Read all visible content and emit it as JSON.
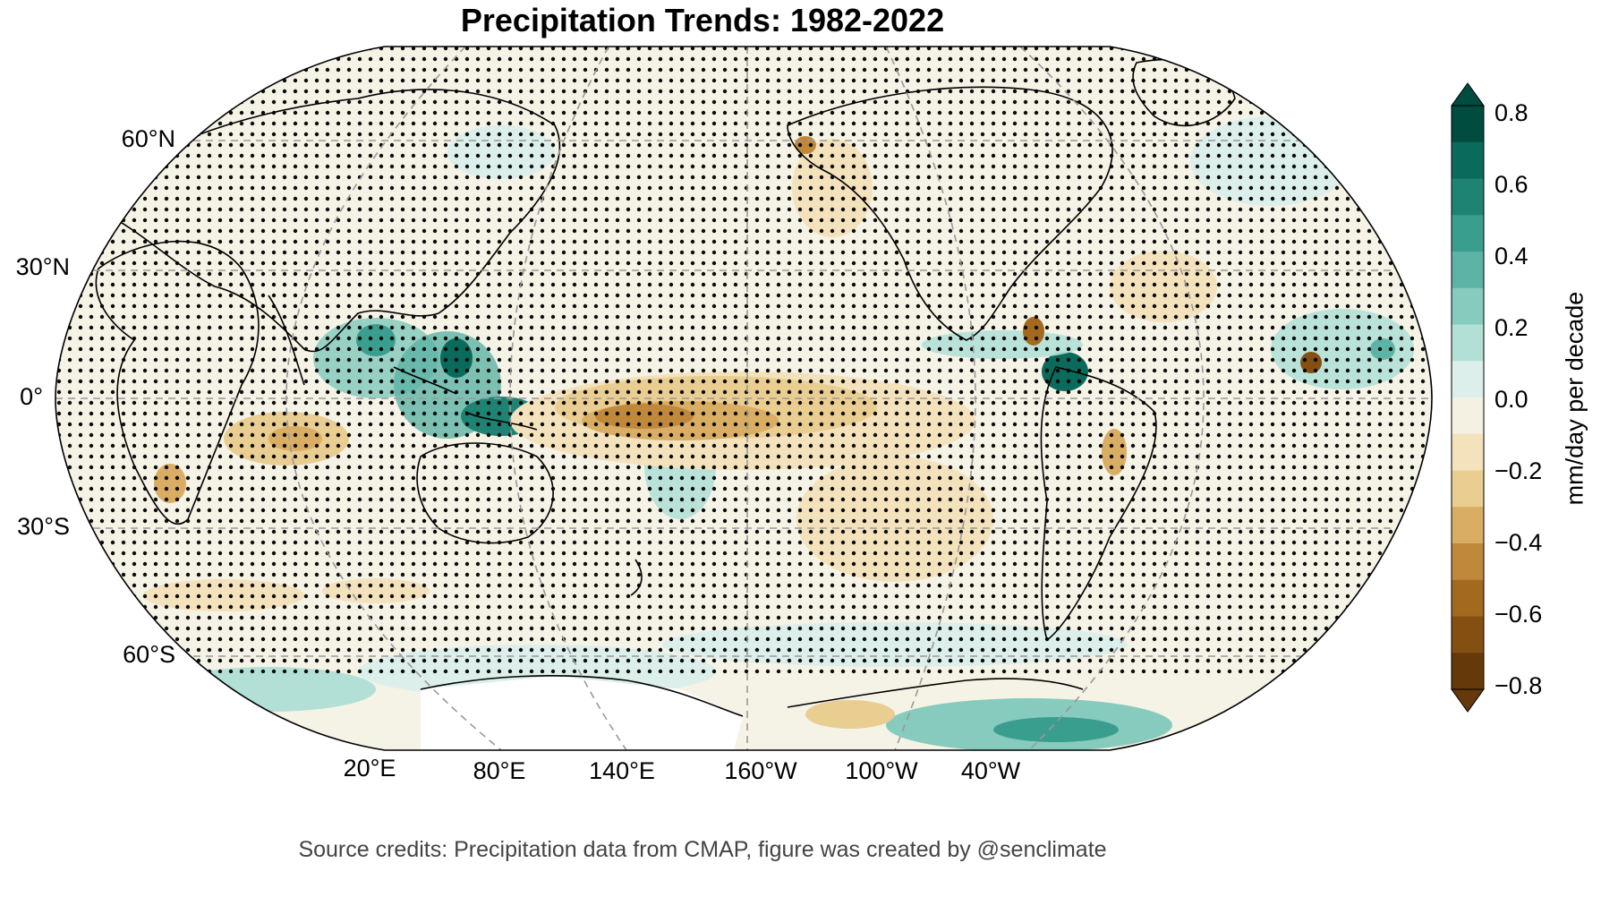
{
  "title": "Precipitation Trends: 1982-2022",
  "credits": "Source credits: Precipitation data from CMAP, figure was created by @senclimate",
  "projection": "Robinson",
  "central_longitude": "180°",
  "stippling": "dots mark non-significant trends",
  "lat_labels": [
    "60°N",
    "30°N",
    "0°",
    "30°S",
    "60°S"
  ],
  "lon_labels": [
    "20°E",
    "80°E",
    "140°E",
    "160°W",
    "100°W",
    "40°W"
  ],
  "colorbar": {
    "label": "mm/day per decade",
    "ticks": [
      "0.8",
      "0.6",
      "0.4",
      "0.2",
      "0.0",
      "−0.2",
      "−0.4",
      "−0.6",
      "−0.8"
    ],
    "range": [
      -0.8,
      0.8
    ],
    "extend": "both",
    "colors": [
      "#004d40",
      "#0a6b5c",
      "#1f8373",
      "#3a9e8e",
      "#5db3a5",
      "#86cbbd",
      "#b2e0d6",
      "#dcefeb",
      "#f4f0e2",
      "#f4e2bc",
      "#e9cd91",
      "#d9ad63",
      "#c0883a",
      "#a3691f",
      "#845012",
      "#66390a"
    ]
  },
  "colors": {
    "ocean_base": "#f5f2e6",
    "coastline": "#000000",
    "gridline": "#999999",
    "wet": "#3a9e8e",
    "dry": "#b5822f"
  }
}
